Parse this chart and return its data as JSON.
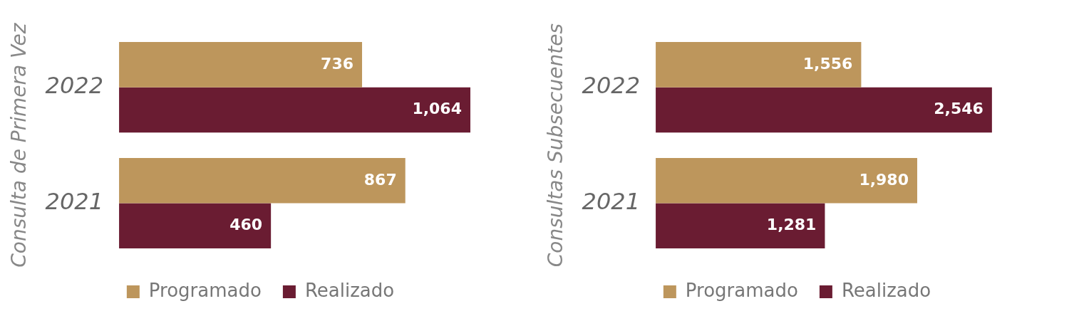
{
  "chart_data": [
    {
      "type": "bar",
      "orientation": "horizontal",
      "ylabel": "Consulta de Primera Vez",
      "categories": [
        "2022",
        "2021"
      ],
      "series": [
        {
          "name": "Programado",
          "color": "#bd965c",
          "values": [
            736,
            867
          ],
          "value_labels": [
            "736",
            "867"
          ]
        },
        {
          "name": "Realizado",
          "color": "#6a1c32",
          "values": [
            1064,
            460
          ],
          "value_labels": [
            "1,064",
            "460"
          ]
        }
      ],
      "legend": "bottom",
      "tick_labels": "y"
    },
    {
      "type": "bar",
      "orientation": "horizontal",
      "ylabel": "Consultas Subsecuentes",
      "categories": [
        "2022",
        "2021"
      ],
      "series": [
        {
          "name": "Programado",
          "color": "#bd965c",
          "values": [
            1556,
            1980
          ],
          "value_labels": [
            "1,556",
            "1,980"
          ]
        },
        {
          "name": "Realizado",
          "color": "#6a1c32",
          "values": [
            2546,
            1281
          ],
          "value_labels": [
            "2,546",
            "1,281"
          ]
        }
      ],
      "legend": "bottom",
      "tick_labels": "y"
    }
  ]
}
